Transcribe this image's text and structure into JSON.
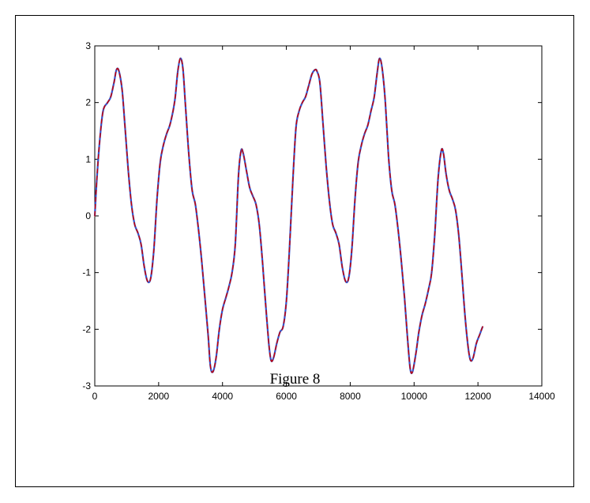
{
  "figure": {
    "caption": "Figure 8"
  },
  "chart_data": {
    "type": "line",
    "title": "",
    "xlabel": "",
    "ylabel": "",
    "xlim": [
      0,
      14000
    ],
    "ylim": [
      -3,
      3
    ],
    "xticks": [
      0,
      2000,
      4000,
      6000,
      8000,
      10000,
      12000,
      14000
    ],
    "yticks": [
      -3,
      -2,
      -1,
      0,
      1,
      2,
      3
    ],
    "grid": false,
    "colors": {
      "series_a": "#cc0000",
      "series_b": "#3355cc"
    },
    "series": [
      {
        "x": [
          0,
          60,
          150,
          260,
          400,
          500,
          600,
          680,
          760,
          860,
          950,
          1050,
          1150,
          1250,
          1350,
          1450,
          1550,
          1650,
          1750,
          1850,
          1950,
          2050,
          2150,
          2250,
          2350,
          2450,
          2520,
          2600,
          2680,
          2760,
          2840,
          2950,
          3050,
          3150,
          3250,
          3350,
          3450,
          3550,
          3620,
          3700,
          3800,
          3900,
          4000,
          4100,
          4200,
          4300,
          4400,
          4500,
          4580,
          4650,
          4750,
          4850,
          4950,
          5050,
          5150,
          5250,
          5350,
          5450,
          5520,
          5600,
          5700,
          5800,
          5900,
          6000,
          6100,
          6200,
          6300,
          6400,
          6500,
          6600,
          6700,
          6800,
          6900,
          6960,
          7050,
          7150,
          7250,
          7350,
          7450,
          7550,
          7650,
          7750,
          7850,
          7950,
          8050,
          8150,
          8250,
          8350,
          8450,
          8550,
          8650,
          8750,
          8850,
          8920,
          9000,
          9100,
          9200,
          9300,
          9400,
          9500,
          9600,
          9700,
          9800,
          9880,
          9950,
          10050,
          10150,
          10250,
          10350,
          10450,
          10550,
          10650,
          10750,
          10850,
          10920,
          11000,
          11100,
          11200,
          11300,
          11400,
          11500,
          11600,
          11700,
          11770,
          11850,
          11950,
          12050,
          12150
        ],
        "values": [
          0.0,
          0.6,
          1.3,
          1.85,
          2.0,
          2.1,
          2.35,
          2.58,
          2.55,
          2.2,
          1.55,
          0.8,
          0.2,
          -0.15,
          -0.3,
          -0.5,
          -0.9,
          -1.15,
          -1.1,
          -0.6,
          0.3,
          0.95,
          1.25,
          1.45,
          1.6,
          1.85,
          2.1,
          2.55,
          2.78,
          2.6,
          1.95,
          1.05,
          0.45,
          0.2,
          -0.25,
          -0.8,
          -1.45,
          -2.1,
          -2.65,
          -2.75,
          -2.5,
          -2.0,
          -1.65,
          -1.45,
          -1.25,
          -1.0,
          -0.5,
          0.7,
          1.15,
          1.1,
          0.8,
          0.5,
          0.35,
          0.2,
          -0.15,
          -0.8,
          -1.55,
          -2.25,
          -2.55,
          -2.5,
          -2.25,
          -2.05,
          -1.95,
          -1.5,
          -0.55,
          0.6,
          1.55,
          1.85,
          2.0,
          2.1,
          2.3,
          2.5,
          2.58,
          2.55,
          2.35,
          1.6,
          0.85,
          0.25,
          -0.15,
          -0.3,
          -0.5,
          -0.9,
          -1.15,
          -1.1,
          -0.6,
          0.3,
          0.95,
          1.25,
          1.45,
          1.6,
          1.85,
          2.1,
          2.55,
          2.78,
          2.6,
          2.0,
          1.05,
          0.45,
          0.2,
          -0.25,
          -0.8,
          -1.45,
          -2.2,
          -2.7,
          -2.75,
          -2.45,
          -2.05,
          -1.75,
          -1.55,
          -1.3,
          -1.0,
          -0.3,
          0.65,
          1.15,
          1.1,
          0.75,
          0.45,
          0.3,
          0.1,
          -0.35,
          -1.05,
          -1.8,
          -2.35,
          -2.55,
          -2.5,
          -2.25,
          -2.1,
          -1.95
        ]
      }
    ]
  }
}
